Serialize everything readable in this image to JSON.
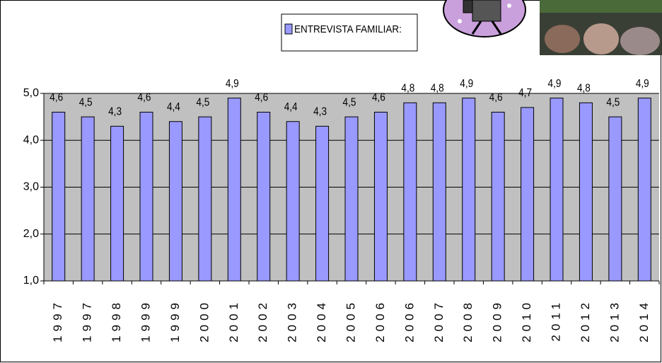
{
  "chart_data": {
    "type": "bar",
    "categories": [
      "1997",
      "1997",
      "1998",
      "1999",
      "1999",
      "2000",
      "2001",
      "2002",
      "2003",
      "2004",
      "2005",
      "2006",
      "2006",
      "2007",
      "2008",
      "2009",
      "2010",
      "2011",
      "2012",
      "2013",
      "2014"
    ],
    "series": [
      {
        "name": "ENTREVISTA FAMILIAR:",
        "color": "#9999ff",
        "values": [
          4.6,
          4.5,
          4.3,
          4.6,
          4.4,
          4.5,
          4.9,
          4.6,
          4.4,
          4.3,
          4.5,
          4.6,
          4.8,
          4.8,
          4.9,
          4.6,
          4.7,
          4.9,
          4.8,
          4.5,
          4.9
        ],
        "value_labels": [
          "4,6",
          "4,5",
          "4,3",
          "4,6",
          "4,4",
          "4,5",
          "4,9",
          "4,6",
          "4,4",
          "4,3",
          "4,5",
          "4,6",
          "4,8",
          "4,8",
          "4,9",
          "4,6",
          "4,7",
          "4,9",
          "4,8",
          "4,5",
          "4,9"
        ]
      }
    ],
    "ylim": [
      1,
      5
    ],
    "yticks": [
      {
        "value": 1,
        "label": "1,0"
      },
      {
        "value": 2,
        "label": "2,0"
      },
      {
        "value": 3,
        "label": "3,0"
      },
      {
        "value": 4,
        "label": "4,0"
      },
      {
        "value": 5,
        "label": "5,0"
      }
    ],
    "grid": true
  }
}
